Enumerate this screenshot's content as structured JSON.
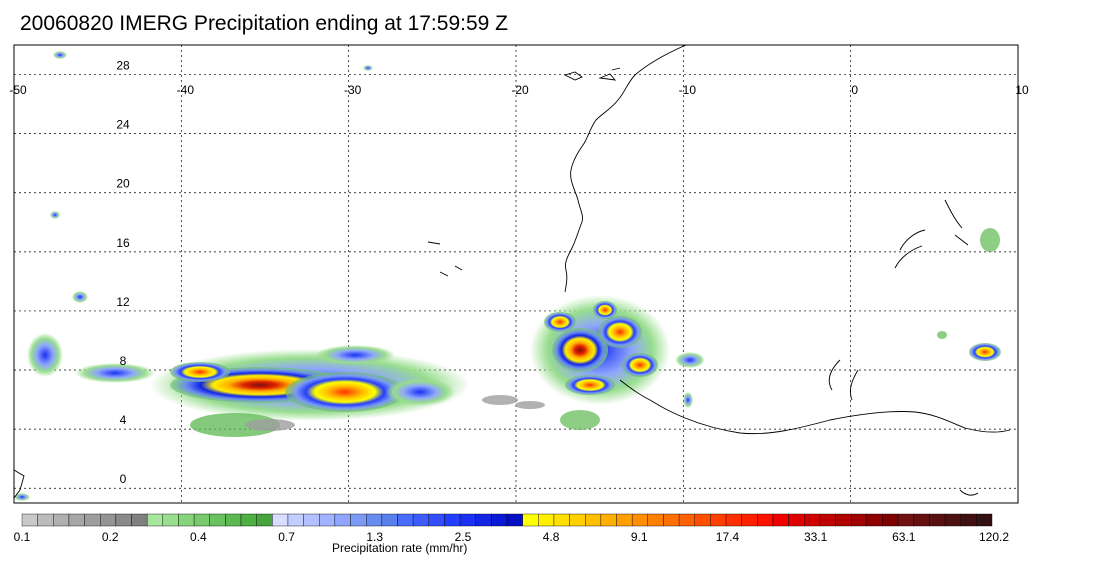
{
  "title": "20060820 IMERG Precipitation ending at 17:59:59 Z",
  "map": {
    "lon_ticks": [
      "-50",
      "-40",
      "-30",
      "-20",
      "-10",
      "0",
      "10"
    ],
    "lat_ticks": [
      "28",
      "24",
      "20",
      "16",
      "12",
      "8",
      "4",
      "0"
    ],
    "lon_range": [
      -50,
      10
    ],
    "lat_range": [
      -1,
      30
    ]
  },
  "colorbar": {
    "label": "Precipitation rate (mm/hr)",
    "tick_labels": [
      "0.1",
      "0.2",
      "0.4",
      "0.7",
      "1.3",
      "2.5",
      "4.8",
      "9.1",
      "17.4",
      "33.1",
      "63.1",
      "120.2"
    ],
    "colors": [
      "#c8c8c8",
      "#bbbbbb",
      "#b0b0b0",
      "#a6a6a6",
      "#9d9d9d",
      "#939393",
      "#8a8a8a",
      "#808080",
      "#a8e6a0",
      "#98dd8e",
      "#88d47c",
      "#78cb6c",
      "#6ac15e",
      "#5cb850",
      "#4fae44",
      "#45a53a",
      "#d8dcff",
      "#c4cdff",
      "#b2c0ff",
      "#a0b3ff",
      "#8ea6fb",
      "#7c99f6",
      "#6a8cf1",
      "#597fec",
      "#4a6bff",
      "#3d5cff",
      "#304dff",
      "#233eff",
      "#1830f5",
      "#1024e6",
      "#0a19d6",
      "#0510c6",
      "#ffff00",
      "#ffef00",
      "#ffdf00",
      "#ffcf00",
      "#ffbf00",
      "#ffaf00",
      "#ff9f00",
      "#ff8f00",
      "#ff7f00",
      "#ff7000",
      "#ff6000",
      "#ff5000",
      "#ff4000",
      "#ff3000",
      "#ff2000",
      "#ff1000",
      "#f00000",
      "#e00000",
      "#d00000",
      "#c00000",
      "#b00000",
      "#a00000",
      "#900000",
      "#800000",
      "#701010",
      "#641010",
      "#581010",
      "#4c1010",
      "#401010",
      "#341010"
    ]
  }
}
